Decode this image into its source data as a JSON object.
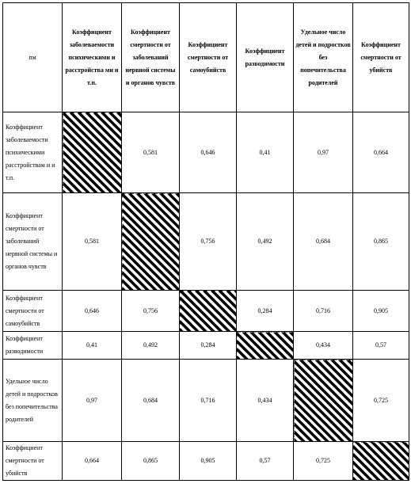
{
  "corner_label": "пм",
  "column_headers": [
    "Коэффициент заболеваемости психическими и расстройства ми и т.п.",
    "Коэффициент смертности от заболеваний нервной системы и органов чувств",
    "Коэффициент смертности от самоубийств",
    "Коэффициент разводимости",
    "Удельное число детей и подростков без попечительства родителей",
    "Коэффициент смертности от убийств"
  ],
  "rows": [
    {
      "label": "Коэффициент заболеваемости психическими расстройствам и и т.п.",
      "cells": [
        null,
        "0,581",
        "0,646",
        "0,41",
        "0,97",
        "0,664"
      ]
    },
    {
      "label": "Коэффициент смертности от заболеваний нервной системы и органов чувств",
      "cells": [
        "0,581",
        null,
        "0,756",
        "0,492",
        "0,684",
        "0,865"
      ]
    },
    {
      "label": "Коэффициент смертности от самоубийств",
      "cells": [
        "0,646",
        "0,756",
        null,
        "0,284",
        "0,716",
        "0,905"
      ]
    },
    {
      "label": "Коэффициент разводимости",
      "cells": [
        "0,41",
        "0,492",
        "0,284",
        null,
        "0,434",
        "0,57"
      ]
    },
    {
      "label": "Удельное число детей и подростков без попечительства родителей",
      "cells": [
        "0,97",
        "0,684",
        "0,716",
        "0,434",
        null,
        "0,725"
      ]
    },
    {
      "label": "Коэффициент смертности от убийств",
      "cells": [
        "0,664",
        "0,865",
        "0,905",
        "0,57",
        "0,725",
        null
      ]
    }
  ]
}
